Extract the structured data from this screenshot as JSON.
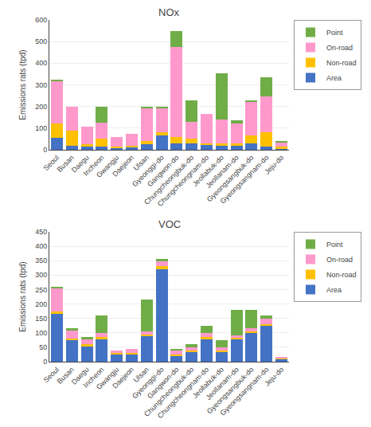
{
  "chart_data": [
    {
      "type": "bar",
      "stacked": true,
      "title": "NOx",
      "ylabel": "Emissions rats (tpd)",
      "categories": [
        "Seoul",
        "Busan",
        "Daegu",
        "Incheon",
        "Gwangju",
        "Daejeon",
        "Ulsan",
        "Gyeonggi-do",
        "Gangwon-do",
        "Chungcheongbuk-do",
        "Chungcheongnam-do",
        "Jeollabuk-do",
        "Jeollanam-do",
        "Gyeongsangbuk-do",
        "Gyeongsangnam-do",
        "Jeju-do"
      ],
      "series": [
        {
          "name": "Area",
          "color": "#4472C4",
          "values": [
            55,
            20,
            15,
            15,
            10,
            10,
            25,
            65,
            30,
            30,
            25,
            20,
            20,
            30,
            15,
            5
          ]
        },
        {
          "name": "Non-road",
          "color": "#FFC000",
          "values": [
            65,
            70,
            10,
            35,
            5,
            10,
            15,
            15,
            30,
            20,
            5,
            10,
            10,
            35,
            65,
            10
          ]
        },
        {
          "name": "On-road",
          "color": "#FF99CC",
          "values": [
            200,
            110,
            80,
            75,
            45,
            55,
            155,
            115,
            415,
            80,
            135,
            110,
            90,
            155,
            165,
            20
          ]
        },
        {
          "name": "Point",
          "color": "#70AD47",
          "values": [
            5,
            0,
            0,
            75,
            0,
            0,
            5,
            5,
            75,
            100,
            0,
            215,
            15,
            10,
            90,
            5
          ]
        }
      ],
      "ylim": [
        0,
        600
      ],
      "yticks": [
        0,
        100,
        200,
        300,
        400,
        500,
        600
      ],
      "grid": true,
      "legend": "upper right"
    },
    {
      "type": "bar",
      "stacked": true,
      "title": "VOC",
      "ylabel": "Emissions rats (tpd)",
      "categories": [
        "Seoul",
        "Busan",
        "Daegu",
        "Incheon",
        "Gwangju",
        "Daejeon",
        "Ulsan",
        "Gyeonggi-do",
        "Gangwon-do",
        "Chungcheongbuk-do",
        "Chungcheongnam-do",
        "Jeollabuk-do",
        "Jeollanam-do",
        "Gyeongsangbuk-do",
        "Gyeongsangnam-do",
        "Jeju-do"
      ],
      "series": [
        {
          "name": "Area",
          "color": "#4472C4",
          "values": [
            165,
            75,
            55,
            80,
            25,
            25,
            90,
            320,
            20,
            35,
            80,
            35,
            80,
            100,
            125,
            10
          ]
        },
        {
          "name": "Non-road",
          "color": "#FFC000",
          "values": [
            10,
            5,
            5,
            5,
            5,
            5,
            5,
            10,
            5,
            5,
            5,
            5,
            5,
            5,
            5,
            2
          ]
        },
        {
          "name": "On-road",
          "color": "#FF99CC",
          "values": [
            80,
            30,
            20,
            15,
            10,
            15,
            10,
            20,
            15,
            10,
            15,
            10,
            5,
            10,
            20,
            2
          ]
        },
        {
          "name": "Point",
          "color": "#70AD47",
          "values": [
            5,
            5,
            5,
            60,
            0,
            0,
            110,
            5,
            5,
            10,
            25,
            25,
            90,
            65,
            10,
            0
          ]
        }
      ],
      "ylim": [
        0,
        450
      ],
      "yticks": [
        0,
        50,
        100,
        150,
        200,
        250,
        300,
        350,
        400,
        450
      ],
      "grid": true,
      "legend": "upper right"
    }
  ]
}
